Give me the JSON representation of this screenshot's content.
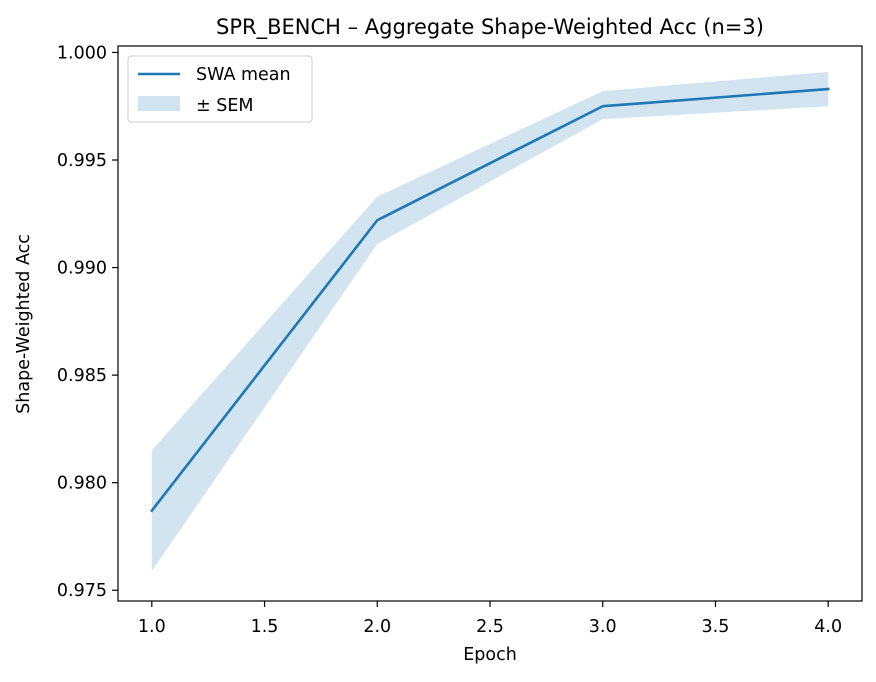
{
  "chart_data": {
    "type": "line",
    "title": "SPR_BENCH – Aggregate Shape-Weighted Acc (n=3)",
    "xlabel": "Epoch",
    "ylabel": "Shape-Weighted Acc",
    "xlim": [
      0.85,
      4.15
    ],
    "ylim": [
      0.9745,
      1.0003
    ],
    "x_ticks": [
      1.0,
      1.5,
      2.0,
      2.5,
      3.0,
      3.5,
      4.0
    ],
    "x_tick_labels": [
      "1.0",
      "1.5",
      "2.0",
      "2.5",
      "3.0",
      "3.5",
      "4.0"
    ],
    "y_ticks": [
      0.975,
      0.98,
      0.985,
      0.99,
      0.995,
      1.0
    ],
    "y_tick_labels": [
      "0.975",
      "0.980",
      "0.985",
      "0.990",
      "0.995",
      "1.000"
    ],
    "grid": false,
    "legend_position": "top-left",
    "x": [
      1.0,
      2.0,
      3.0,
      4.0
    ],
    "series": [
      {
        "name": "SWA mean",
        "kind": "line",
        "color": "#1f77b4",
        "values": [
          0.9787,
          0.9922,
          0.9975,
          0.9983
        ]
      },
      {
        "name": "± SEM",
        "kind": "band",
        "color": "#1f77b4",
        "lower": [
          0.9759,
          0.9911,
          0.9969,
          0.9975
        ],
        "upper": [
          0.9815,
          0.9933,
          0.9982,
          0.9991
        ]
      }
    ]
  }
}
